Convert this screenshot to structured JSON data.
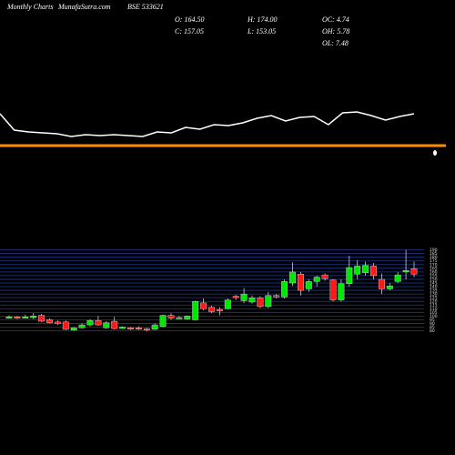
{
  "header": {
    "site_label": "Monthly Charts",
    "site": "MunafaSutra.com",
    "symbol": "BSE 533621",
    "open": "O: 164.50",
    "high": "H: 174.00",
    "oc": "OC: 4.74",
    "close": "C: 157.05",
    "low": "L: 153.05",
    "oh": "OH: 5.78",
    "ol": "OL: 7.48"
  },
  "chart_data": [
    {
      "type": "line",
      "color": "#ffffff",
      "ylim": [
        0,
        50
      ],
      "level": 0,
      "level_color": "#ff8c00",
      "values": [
        35,
        17,
        15,
        14,
        13,
        10,
        12,
        11,
        12,
        11,
        10,
        15,
        14,
        20,
        18,
        23,
        22,
        25,
        30,
        33,
        27,
        31,
        32,
        23,
        36,
        37,
        33,
        28,
        32,
        35
      ]
    },
    {
      "type": "candlestick",
      "up_color": "#00e600",
      "down_color": "#ff1a1a",
      "grid_color": "#1f3a8f",
      "ylim": [
        72,
        192
      ],
      "yticks": [
        80,
        85,
        90,
        95,
        100,
        105,
        110,
        115,
        120,
        125,
        130,
        135,
        140,
        145,
        150,
        155,
        160,
        165,
        170,
        175,
        180,
        185,
        190
      ],
      "open": [
        98,
        99,
        98,
        98,
        101,
        95,
        92,
        92,
        81,
        84,
        88,
        94,
        84,
        93,
        84,
        84,
        84,
        83,
        82,
        86,
        101,
        97,
        96,
        95,
        118,
        112,
        109,
        110,
        127,
        121,
        119,
        125,
        113,
        128,
        126,
        145,
        157,
        137,
        147,
        156,
        149,
        122,
        144,
        157,
        159,
        168,
        150,
        137,
        147,
        160,
        164.5
      ],
      "high": [
        101,
        100,
        102,
        104,
        103,
        97,
        94,
        94,
        85,
        90,
        96,
        100,
        93,
        99,
        86,
        85,
        86,
        84,
        90,
        102,
        104,
        100,
        101,
        121,
        124,
        114,
        112,
        124,
        129,
        138,
        128,
        127,
        133,
        130,
        150,
        173,
        160,
        150,
        155,
        158,
        150,
        150,
        182,
        176,
        174,
        172,
        158,
        145,
        160,
        190,
        174
      ],
      "low": [
        97,
        96,
        97,
        96,
        92,
        90,
        88,
        81,
        80,
        83,
        86,
        87,
        83,
        82,
        83,
        81,
        81,
        79,
        81,
        85,
        95,
        96,
        95,
        94,
        108,
        104,
        101,
        109,
        122,
        118,
        117,
        111,
        111,
        124,
        124,
        141,
        128,
        133,
        140,
        148,
        120,
        120,
        140,
        150,
        155,
        150,
        130,
        135,
        145,
        150,
        153.05
      ],
      "close": [
        99,
        98,
        99,
        100,
        93,
        91,
        90,
        82,
        84,
        88,
        94,
        88,
        91,
        83,
        85,
        83,
        83,
        82,
        88,
        101,
        97,
        98,
        100,
        120,
        110,
        106,
        108,
        122,
        126,
        130,
        125,
        113,
        128,
        126,
        147,
        160,
        135,
        147,
        153,
        151,
        122,
        144,
        166,
        168,
        169,
        155,
        137,
        141,
        156,
        162,
        157.05
      ]
    }
  ]
}
